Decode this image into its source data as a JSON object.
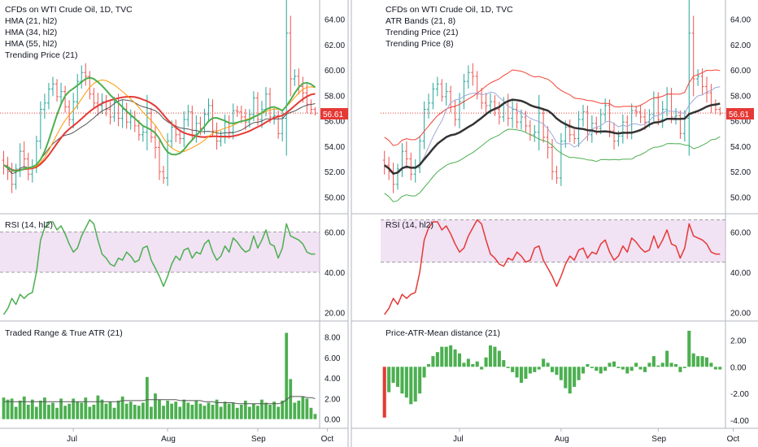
{
  "colors": {
    "up": "#26a69a",
    "down": "#ef5350",
    "hma21": "#4caf50",
    "hma34": "#ff9800",
    "hma55": "#e53935",
    "trending": "#555555",
    "atr_upper": "#f44336",
    "atr_lower": "#4caf50",
    "rsi_green": "#4caf50",
    "rsi_red": "#e53935",
    "rsi_band": "#e1bee7",
    "histo_green": "#4caf50",
    "histo_red": "#e53935",
    "price_label": "#e53935"
  },
  "chart_data": [
    {
      "type": "line",
      "panel": "left-price",
      "title": "CFDs on WTI Crude Oil, 1D, TVC",
      "legend": [
        "HMA (21, hl2)",
        "HMA (34, hl2)",
        "HMA (55, hl2)",
        "Trending Price (21)"
      ],
      "ylim": [
        49,
        65
      ],
      "yticks": [
        "64.00",
        "62.00",
        "60.00",
        "58.00",
        "56.00",
        "54.00",
        "52.00",
        "50.00"
      ],
      "last_price": "56.61",
      "close": [
        52.5,
        52.0,
        51.0,
        52.2,
        53.6,
        53.0,
        51.8,
        52.3,
        54.4,
        56.9,
        57.4,
        58.5,
        58.9,
        57.9,
        58.3,
        57.1,
        56.1,
        57.5,
        59.1,
        59.8,
        59.5,
        58.1,
        57.4,
        57.2,
        57.5,
        56.9,
        56.3,
        57.5,
        56.2,
        56.9,
        55.9,
        56.3,
        55.6,
        54.9,
        55.1,
        56.6,
        54.7,
        53.9,
        52.0,
        51.5,
        54.4,
        55.5,
        54.9,
        54.6,
        56.1,
        56.7,
        54.9,
        55.8,
        55.4,
        56.5,
        57.2,
        55.2,
        54.4,
        54.8,
        55.9,
        55.1,
        56.8,
        56.7,
        56.3,
        55.9,
        56.5,
        57.8,
        56.1,
        56.9,
        58.1,
        56.3,
        56.4,
        55.0,
        56.2,
        62.9,
        59.3,
        59.5,
        58.7,
        58.2,
        57.3,
        56.9,
        56.6
      ]
    },
    {
      "type": "line",
      "panel": "right-price",
      "title": "CFDs on WTI Crude Oil, 1D, TVC",
      "legend": [
        "ATR Bands (21, 8)",
        "Trending Price (21)",
        "Trending Price (8)"
      ],
      "ylim": [
        49,
        65
      ],
      "yticks": [
        "64.00",
        "62.00",
        "60.00",
        "58.00",
        "56.00",
        "54.00",
        "52.00",
        "50.00"
      ],
      "last_price": "56.61"
    },
    {
      "type": "line",
      "panel": "left-rsi",
      "title": "RSI (14, hl2)",
      "ylim": [
        17,
        67
      ],
      "yticks": [
        "60.00",
        "40.00",
        "20.00"
      ],
      "band": [
        40,
        60
      ],
      "values": [
        19,
        22,
        27,
        24,
        29,
        27,
        29,
        30,
        40,
        56,
        62,
        65,
        65,
        61,
        63,
        59,
        54,
        50,
        52,
        58,
        62,
        66,
        64,
        56,
        49,
        47,
        44,
        43,
        47,
        46,
        50,
        48,
        45,
        46,
        52,
        53,
        46,
        42,
        38,
        33,
        38,
        44,
        48,
        46,
        51,
        52,
        47,
        50,
        49,
        54,
        56,
        50,
        46,
        48,
        53,
        50,
        57,
        55,
        52,
        50,
        51,
        58,
        52,
        56,
        61,
        54,
        53,
        47,
        52,
        64,
        58,
        57,
        56,
        54,
        50,
        49,
        49
      ]
    },
    {
      "type": "line",
      "panel": "right-rsi",
      "title": "RSI (14, hl2)",
      "ylim": [
        17,
        67
      ],
      "yticks": [
        "60.00",
        "40.00",
        "20.00"
      ],
      "band": [
        45,
        66
      ]
    },
    {
      "type": "bar",
      "panel": "left-atr",
      "title": "Traded Range & True ATR (21)",
      "ylim": [
        -0.5,
        9
      ],
      "yticks": [
        "8.00",
        "6.00",
        "4.00",
        "2.00",
        "0.00"
      ],
      "values": [
        2.1,
        1.9,
        2.0,
        1.2,
        1.8,
        2.2,
        1.4,
        1.9,
        1.2,
        1.8,
        2.1,
        1.4,
        1.6,
        1.1,
        2.0,
        1.3,
        1.5,
        2.0,
        1.7,
        1.6,
        2.1,
        1.2,
        1.4,
        2.3,
        1.9,
        1.5,
        1.7,
        1.1,
        1.8,
        2.2,
        1.5,
        1.7,
        1.4,
        1.3,
        1.6,
        4.1,
        1.2,
        2.5,
        1.9,
        1.3,
        1.8,
        1.5,
        1.7,
        1.2,
        1.9,
        1.6,
        1.4,
        1.8,
        1.5,
        1.3,
        1.6,
        1.4,
        1.9,
        1.2,
        1.7,
        1.5,
        1.6,
        1.1,
        1.4,
        1.8,
        1.2,
        1.5,
        1.3,
        1.9,
        1.6,
        1.4,
        1.7,
        1.2,
        1.8,
        8.4,
        3.9,
        1.6,
        1.8,
        2.2,
        2.0,
        1.1,
        0.5
      ],
      "atr_line": [
        1.7,
        1.7,
        1.7,
        1.7,
        1.7,
        1.7,
        1.7,
        1.7,
        1.7,
        1.7,
        1.7,
        1.7,
        1.7,
        1.7,
        1.7,
        1.7,
        1.7,
        1.7,
        1.7,
        1.7,
        1.7,
        1.7,
        1.7,
        1.7,
        1.7,
        1.7,
        1.7,
        1.7,
        1.7,
        1.8,
        1.8,
        1.8,
        1.8,
        1.8,
        1.8,
        1.9,
        1.9,
        1.9,
        1.9,
        1.9,
        1.9,
        1.9,
        1.9,
        1.8,
        1.8,
        1.8,
        1.8,
        1.8,
        1.8,
        1.7,
        1.7,
        1.7,
        1.6,
        1.6,
        1.6,
        1.6,
        1.6,
        1.5,
        1.5,
        1.5,
        1.5,
        1.5,
        1.5,
        1.5,
        1.5,
        1.5,
        1.5,
        1.5,
        1.6,
        1.9,
        2.2,
        2.2,
        2.2,
        2.2,
        2.1,
        2.1,
        2.0
      ]
    },
    {
      "type": "bar",
      "panel": "right-dist",
      "title": "Price-ATR-Mean distance (21)",
      "ylim": [
        -4.3,
        3.0
      ],
      "yticks": [
        "2.00",
        "0.00",
        "-2.00",
        "-4.00"
      ],
      "values": [
        -3.8,
        -1.9,
        -1.2,
        -1.5,
        -2.0,
        -2.3,
        -2.8,
        -2.6,
        -2.0,
        -0.8,
        0.2,
        0.8,
        1.1,
        1.5,
        1.5,
        1.6,
        1.3,
        1.0,
        0.3,
        0.6,
        0.2,
        0.4,
        -0.2,
        0.7,
        1.6,
        1.5,
        1.2,
        0.5,
        -0.1,
        -0.4,
        -0.8,
        -1.2,
        -0.9,
        -0.5,
        -0.4,
        -0.2,
        0.6,
        0.3,
        -0.4,
        -0.6,
        -1.0,
        -1.6,
        -2.0,
        -1.5,
        -1.0,
        -0.5,
        0.2,
        -0.1,
        -0.3,
        -0.5,
        -0.3,
        0.3,
        0.4,
        -0.1,
        -0.2,
        -0.5,
        -0.3,
        0.3,
        -0.2,
        -0.4,
        0.3,
        0.8,
        0.1,
        0.3,
        1.2,
        0.3,
        0.2,
        -0.4,
        -0.1,
        2.7,
        1.0,
        0.8,
        0.8,
        0.7,
        0.3,
        -0.2,
        -0.2
      ]
    }
  ],
  "xaxis": {
    "labels": [
      "Jul",
      "Aug",
      "Sep",
      "Oct"
    ],
    "label_bar_index": [
      17,
      40,
      62,
      79
    ]
  }
}
